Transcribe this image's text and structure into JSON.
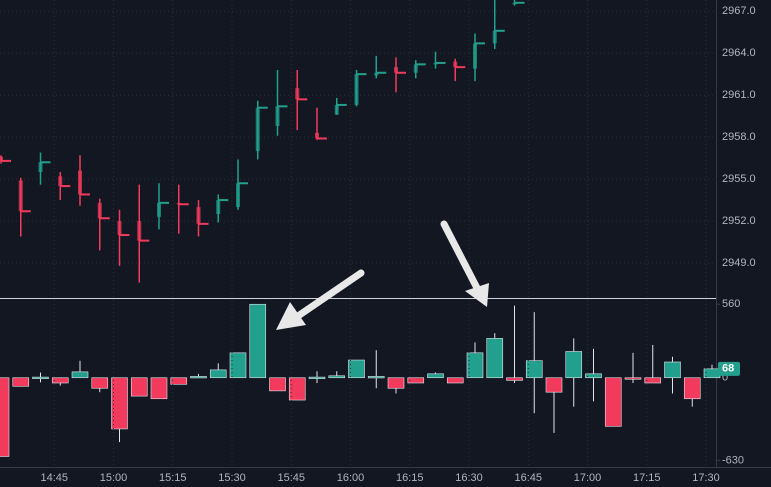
{
  "chart_data": [
    {
      "type": "candlestick",
      "open": [
        2956.6,
        2954.9,
        2955.5,
        2955.2,
        2955.6,
        2953.3,
        2952.0,
        2952.0,
        2952.3,
        2953.3,
        2953.0,
        2952.5,
        2953.0,
        2957.0,
        2958.8,
        2961.5,
        2958.3,
        2959.6,
        2960.3,
        2962.4,
        2963.0,
        2962.6,
        2963.2,
        2963.4,
        2962.9,
        2964.7,
        2967.5,
        null,
        null,
        null,
        null,
        null,
        null,
        null,
        null,
        null,
        null
      ],
      "high": [
        2956.7,
        2955.1,
        2956.9,
        2955.5,
        2956.7,
        2953.6,
        2952.8,
        2954.6,
        2954.7,
        2954.6,
        2953.5,
        2953.9,
        2956.4,
        2960.6,
        2962.8,
        2962.8,
        2960.1,
        2960.8,
        2962.8,
        2963.8,
        2963.7,
        2963.5,
        2964.1,
        2963.6,
        2965.4,
        2967.8,
        2967.8,
        null,
        null,
        null,
        null,
        null,
        null,
        null,
        null,
        null,
        null
      ],
      "low": [
        2956.1,
        2950.9,
        2954.6,
        2953.5,
        2953.1,
        2949.9,
        2948.8,
        2947.6,
        2951.4,
        2951.1,
        2950.9,
        2951.9,
        2952.8,
        2956.4,
        2958.1,
        2958.5,
        2957.8,
        2959.6,
        2960.2,
        2962.2,
        2961.2,
        2962.2,
        2962.9,
        2962.0,
        2962.0,
        2964.3,
        2967.4,
        null,
        null,
        null,
        null,
        null,
        null,
        null,
        null,
        null,
        null
      ],
      "close": [
        2956.3,
        2952.7,
        2956.2,
        2954.5,
        2953.9,
        2952.2,
        2951.0,
        2950.6,
        2953.3,
        2953.2,
        2951.8,
        2953.5,
        2954.7,
        2960.1,
        2960.2,
        2960.7,
        2957.9,
        2960.3,
        2962.5,
        2962.6,
        2962.6,
        2963.2,
        2963.3,
        2963.0,
        2964.7,
        2965.6,
        2967.6,
        null,
        null,
        null,
        null,
        null,
        null,
        null,
        null,
        null,
        null
      ],
      "up_color": "#22a08d",
      "down_color": "#f23b5c",
      "ylim": [
        2946.5,
        2967.8
      ],
      "yticks": [
        {
          "value": 2949,
          "label": "2949.0"
        },
        {
          "value": 2952,
          "label": "2952.0"
        },
        {
          "value": 2955,
          "label": "2955.0"
        },
        {
          "value": 2958,
          "label": "2958.0"
        },
        {
          "value": 2961,
          "label": "2961.0"
        },
        {
          "value": 2964,
          "label": "2964.0"
        },
        {
          "value": 2967,
          "label": "2967.0"
        }
      ],
      "grid": true
    },
    {
      "type": "bar",
      "categories": [
        null,
        null,
        null,
        "14:45",
        null,
        null,
        "15:00",
        null,
        null,
        "15:15",
        null,
        null,
        "15:30",
        null,
        null,
        "15:45",
        null,
        null,
        "16:00",
        null,
        null,
        "16:15",
        null,
        null,
        "16:30",
        null,
        null,
        "16:45",
        null,
        null,
        "17:00",
        null,
        null,
        "17:15",
        null,
        null,
        "17:30"
      ],
      "values": [
        -600,
        -65,
        5,
        -40,
        45,
        -80,
        -390,
        -140,
        -160,
        -50,
        10,
        60,
        190,
        560,
        -100,
        -170,
        5,
        15,
        135,
        10,
        -80,
        -40,
        30,
        -40,
        190,
        300,
        -20,
        130,
        -110,
        200,
        30,
        -370,
        -10,
        -40,
        120,
        -160,
        68
      ],
      "high": [
        0,
        0,
        40,
        0,
        130,
        0,
        0,
        0,
        0,
        0,
        30,
        110,
        190,
        560,
        0,
        0,
        50,
        50,
        135,
        210,
        0,
        0,
        40,
        0,
        270,
        340,
        550,
        500,
        0,
        300,
        220,
        0,
        190,
        250,
        160,
        0,
        100
      ],
      "low": [
        -600,
        -65,
        -35,
        -60,
        0,
        -110,
        -490,
        -140,
        -160,
        -50,
        0,
        0,
        0,
        0,
        -100,
        -170,
        -40,
        0,
        0,
        -80,
        -120,
        -40,
        0,
        -40,
        0,
        0,
        -40,
        -270,
        -420,
        -220,
        -180,
        -370,
        -40,
        -40,
        -120,
        -220,
        0
      ],
      "up_color": "#22a08d",
      "down_color": "#f23b5c",
      "ylim": [
        -680,
        600
      ],
      "yticks": [
        -630,
        0,
        560
      ]
    }
  ]
}
